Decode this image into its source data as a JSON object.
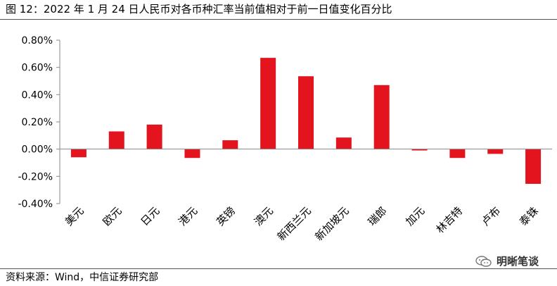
{
  "figure": {
    "title": "图 12：2022 年 1 月 24 日人民币对各币种汇率当前值相对于前一日值变化百分比",
    "source": "资料来源：Wind，中信证券研究部",
    "watermark": "明晰笔谈",
    "watermark_icon": "wechat-icon"
  },
  "chart_data": {
    "type": "bar",
    "title": "",
    "xlabel": "",
    "ylabel": "",
    "categories": [
      "美元",
      "欧元",
      "日元",
      "港元",
      "英镑",
      "澳元",
      "新西兰元",
      "新加坡元",
      "瑞郎",
      "加元",
      "林吉特",
      "卢布",
      "泰铢"
    ],
    "values": [
      -0.06,
      0.13,
      0.18,
      -0.065,
      0.065,
      0.67,
      0.535,
      0.085,
      0.47,
      -0.01,
      -0.065,
      -0.035,
      -0.255
    ],
    "ylim": [
      -0.4,
      0.8
    ],
    "yticks": [
      -0.4,
      -0.2,
      0.0,
      0.2,
      0.4,
      0.6,
      0.8
    ],
    "ytick_labels": [
      "-0.40%",
      "-0.20%",
      "0.00%",
      "0.20%",
      "0.40%",
      "0.60%",
      "0.80%"
    ],
    "value_unit": "%",
    "grid": false,
    "legend": "none",
    "bar_color": "#e3141d",
    "axis_color": "#888888"
  }
}
